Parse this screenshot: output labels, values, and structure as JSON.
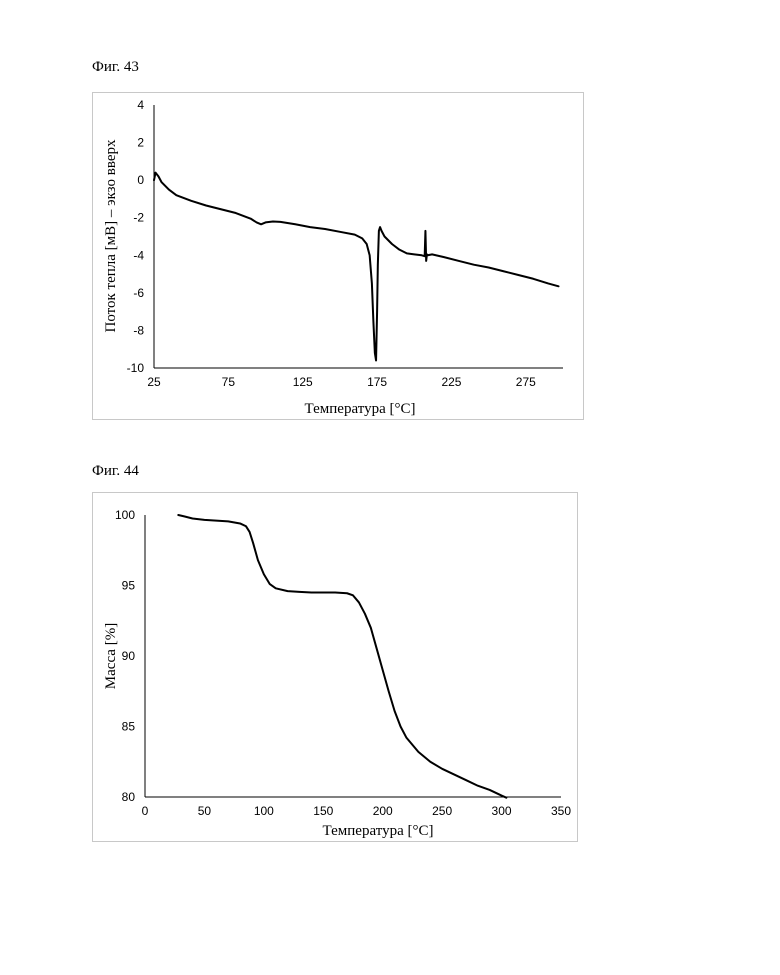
{
  "figures": [
    {
      "label": "Фиг. 43"
    },
    {
      "label": "Фиг. 44"
    }
  ],
  "chart_data": [
    {
      "type": "line",
      "title": "",
      "xlabel": "Температура [°C]",
      "ylabel": "Поток тепла [мВ] – экзо вверх",
      "xlim": [
        25,
        300
      ],
      "ylim": [
        -10,
        4
      ],
      "xticks": [
        25,
        75,
        125,
        175,
        225,
        275
      ],
      "yticks": [
        -10,
        -8,
        -6,
        -4,
        -2,
        0,
        2,
        4
      ],
      "grid": false,
      "series": [
        {
          "x": [
            25,
            26,
            28,
            30,
            35,
            40,
            50,
            60,
            70,
            80,
            90,
            94,
            97,
            100,
            105,
            110,
            120,
            130,
            140,
            150,
            160,
            165,
            168,
            170,
            171.5,
            172.5,
            173.5,
            174.3,
            175,
            175.5,
            176.2,
            177,
            178,
            180,
            185,
            190,
            195,
            200,
            205,
            207,
            207.5,
            208,
            208.5,
            209,
            212,
            220,
            230,
            240,
            250,
            260,
            270,
            280,
            290,
            297
          ],
          "y": [
            0.0,
            0.4,
            0.2,
            -0.1,
            -0.5,
            -0.8,
            -1.1,
            -1.35,
            -1.55,
            -1.75,
            -2.05,
            -2.25,
            -2.35,
            -2.25,
            -2.2,
            -2.22,
            -2.35,
            -2.5,
            -2.6,
            -2.75,
            -2.9,
            -3.1,
            -3.4,
            -4.0,
            -5.5,
            -7.5,
            -9.2,
            -9.6,
            -7.0,
            -4.5,
            -2.7,
            -2.5,
            -2.7,
            -3.0,
            -3.4,
            -3.7,
            -3.9,
            -3.95,
            -4.0,
            -4.05,
            -2.7,
            -4.3,
            -3.95,
            -4.0,
            -3.95,
            -4.1,
            -4.3,
            -4.5,
            -4.65,
            -4.85,
            -5.05,
            -5.25,
            -5.5,
            -5.65
          ]
        }
      ]
    },
    {
      "type": "line",
      "title": "",
      "xlabel": "Температура [°C]",
      "ylabel": "Масса [%]",
      "xlim": [
        0,
        350
      ],
      "ylim": [
        80,
        100
      ],
      "xticks": [
        0,
        50,
        100,
        150,
        200,
        250,
        300,
        350
      ],
      "yticks": [
        80,
        85,
        90,
        95,
        100
      ],
      "grid": false,
      "series": [
        {
          "x": [
            28,
            33,
            40,
            50,
            60,
            70,
            80,
            85,
            88,
            91,
            95,
            100,
            105,
            110,
            120,
            130,
            140,
            150,
            160,
            170,
            175,
            180,
            185,
            190,
            195,
            200,
            205,
            210,
            215,
            220,
            230,
            240,
            250,
            260,
            270,
            280,
            290,
            300,
            304
          ],
          "y": [
            100,
            99.9,
            99.75,
            99.65,
            99.6,
            99.55,
            99.4,
            99.2,
            98.8,
            98.0,
            96.8,
            95.8,
            95.1,
            94.8,
            94.6,
            94.55,
            94.5,
            94.5,
            94.5,
            94.45,
            94.3,
            93.8,
            93.0,
            92.0,
            90.5,
            89.0,
            87.5,
            86.1,
            85.0,
            84.2,
            83.2,
            82.5,
            82.0,
            81.6,
            81.2,
            80.8,
            80.5,
            80.1,
            79.95
          ]
        }
      ]
    }
  ]
}
